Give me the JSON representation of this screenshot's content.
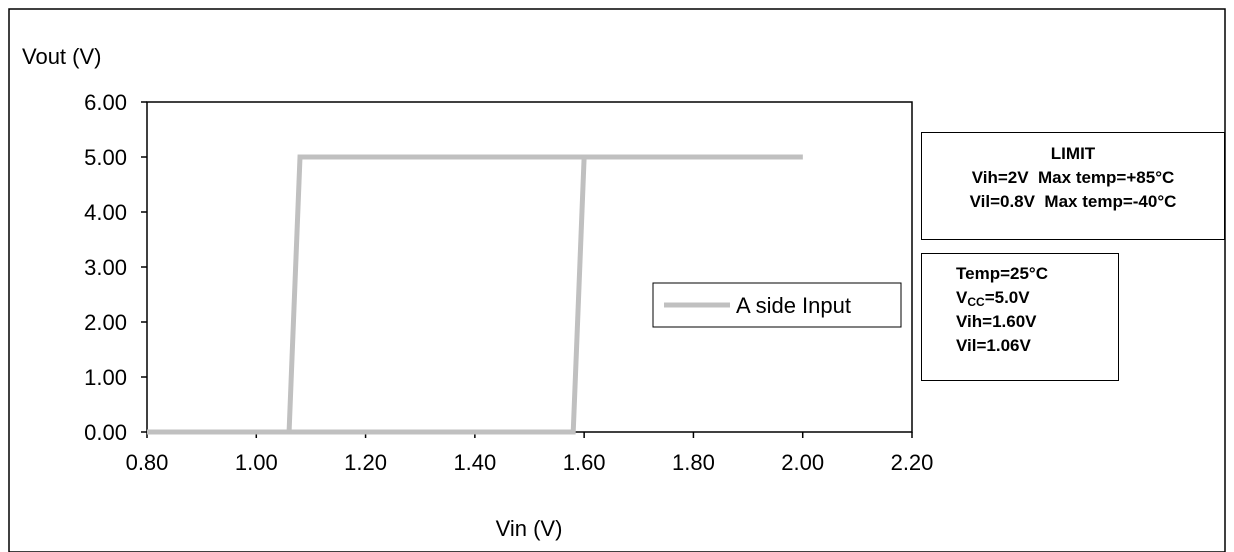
{
  "chart_data": {
    "type": "line",
    "title": "",
    "xlabel": "Vin (V)",
    "ylabel": "Vout (V)",
    "xlim": [
      0.8,
      2.2
    ],
    "ylim": [
      0,
      6
    ],
    "x_ticks": [
      "0.80",
      "1.00",
      "1.20",
      "1.40",
      "1.60",
      "1.80",
      "2.00",
      "2.20"
    ],
    "y_ticks": [
      "0.00",
      "1.00",
      "2.00",
      "3.00",
      "4.00",
      "5.00",
      "6.00"
    ],
    "grid": false,
    "legend_placement": "center-right",
    "series": [
      {
        "name": "A side Input",
        "color": "#c0c0c0",
        "segments": [
          {
            "x": [
              0.8,
              1.06,
              1.08,
              2.0
            ],
            "y": [
              0,
              0,
              5,
              5
            ]
          },
          {
            "x": [
              2.0,
              1.6,
              1.58,
              0.8
            ],
            "y": [
              5,
              5,
              0,
              0
            ]
          }
        ]
      }
    ]
  },
  "limit_box": {
    "title": "LIMIT",
    "line1": "Vih=2V  Max temp=+85°C",
    "line2": "Vil=0.8V  Max temp=-40°C"
  },
  "conditions_box": {
    "temp": "Temp=25°C",
    "vcc_prefix": "V",
    "vcc_sub": "CC",
    "vcc_value": "=5.0V",
    "vih": "Vih=1.60V",
    "vil": "Vil=1.06V"
  },
  "colors": {
    "series": "#c0c0c0",
    "axis": "#000000",
    "border": "#000000"
  }
}
